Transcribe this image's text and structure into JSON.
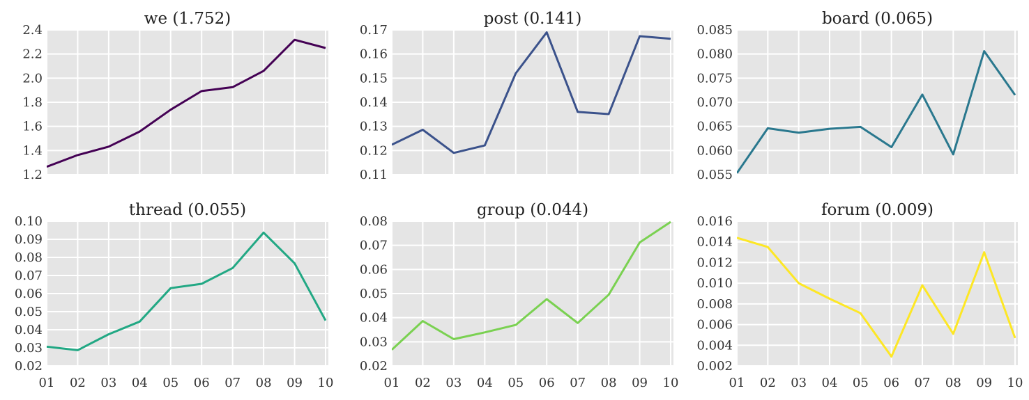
{
  "chart_data": [
    {
      "type": "line",
      "title": "we (1.752)",
      "color": "#440154",
      "x": [
        "01",
        "02",
        "03",
        "04",
        "05",
        "06",
        "07",
        "08",
        "09",
        "10"
      ],
      "values": [
        1.265,
        1.362,
        1.432,
        1.557,
        1.738,
        1.893,
        1.925,
        2.06,
        2.318,
        2.25
      ],
      "ylim": [
        1.2,
        2.4
      ],
      "yticks": [
        "1.2",
        "1.4",
        "1.6",
        "1.8",
        "2.0",
        "2.2",
        "2.4"
      ],
      "xtick_labels_shown": false
    },
    {
      "type": "line",
      "title": "post (0.141)",
      "color": "#3b528b",
      "x": [
        "01",
        "02",
        "03",
        "04",
        "05",
        "06",
        "07",
        "08",
        "09",
        "10"
      ],
      "values": [
        0.1224,
        0.1286,
        0.119,
        0.1221,
        0.152,
        0.169,
        0.136,
        0.1351,
        0.1674,
        0.1663
      ],
      "ylim": [
        0.11,
        0.17
      ],
      "yticks": [
        "0.11",
        "0.12",
        "0.13",
        "0.14",
        "0.15",
        "0.16",
        "0.17"
      ],
      "xtick_labels_shown": false
    },
    {
      "type": "line",
      "title": "board (0.065)",
      "color": "#2a788e",
      "x": [
        "01",
        "02",
        "03",
        "04",
        "05",
        "06",
        "07",
        "08",
        "09",
        "10"
      ],
      "values": [
        0.0553,
        0.0646,
        0.0637,
        0.0645,
        0.0649,
        0.0607,
        0.0716,
        0.0592,
        0.0806,
        0.0715
      ],
      "ylim": [
        0.055,
        0.085
      ],
      "yticks": [
        "0.055",
        "0.060",
        "0.065",
        "0.070",
        "0.075",
        "0.080",
        "0.085"
      ],
      "xtick_labels_shown": false
    },
    {
      "type": "line",
      "title": "thread (0.055)",
      "color": "#22a884",
      "x": [
        "01",
        "02",
        "03",
        "04",
        "05",
        "06",
        "07",
        "08",
        "09",
        "10"
      ],
      "values": [
        0.0306,
        0.0287,
        0.0375,
        0.0445,
        0.063,
        0.0654,
        0.0741,
        0.0937,
        0.0767,
        0.0451
      ],
      "ylim": [
        0.02,
        0.1
      ],
      "yticks": [
        "0.02",
        "0.03",
        "0.04",
        "0.05",
        "0.06",
        "0.07",
        "0.08",
        "0.09",
        "0.10"
      ],
      "xtick_labels_shown": true
    },
    {
      "type": "line",
      "title": "group (0.044)",
      "color": "#7ad151",
      "x": [
        "01",
        "02",
        "03",
        "04",
        "05",
        "06",
        "07",
        "08",
        "09",
        "10"
      ],
      "values": [
        0.0267,
        0.0386,
        0.0311,
        0.0339,
        0.037,
        0.0477,
        0.0378,
        0.0495,
        0.0712,
        0.0797
      ],
      "ylim": [
        0.02,
        0.08
      ],
      "yticks": [
        "0.02",
        "0.03",
        "0.04",
        "0.05",
        "0.06",
        "0.07",
        "0.08"
      ],
      "xtick_labels_shown": true
    },
    {
      "type": "line",
      "title": "forum (0.009)",
      "color": "#fde725",
      "x": [
        "01",
        "02",
        "03",
        "04",
        "05",
        "06",
        "07",
        "08",
        "09",
        "10"
      ],
      "values": [
        0.0144,
        0.0135,
        0.01,
        0.0085,
        0.0071,
        0.0029,
        0.0098,
        0.0051,
        0.013,
        0.0047
      ],
      "ylim": [
        0.002,
        0.016
      ],
      "yticks": [
        "0.002",
        "0.004",
        "0.006",
        "0.008",
        "0.010",
        "0.012",
        "0.014",
        "0.016"
      ],
      "xtick_labels_shown": true
    }
  ]
}
